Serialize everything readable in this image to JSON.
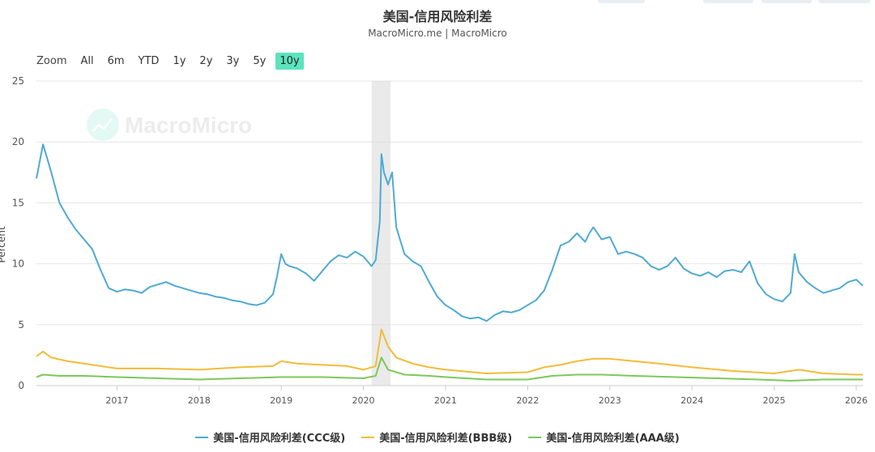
{
  "title": "美国-信用风险利差",
  "subtitle": "MacroMicro.me | MacroMicro",
  "watermark": "MacroMicro",
  "zoom": {
    "label": "Zoom",
    "buttons": [
      "All",
      "6m",
      "YTD",
      "1y",
      "2y",
      "3y",
      "5y",
      "10y"
    ],
    "active": "10y"
  },
  "chart_data": {
    "type": "line",
    "ylabel": "Percent",
    "ylim": [
      0,
      25
    ],
    "yticks": [
      0,
      5,
      10,
      15,
      20,
      25
    ],
    "xlim": [
      2016.02,
      2026.08
    ],
    "xticks": [
      "2017",
      "2018",
      "2019",
      "2020",
      "2021",
      "2022",
      "2023",
      "2024",
      "2025",
      "2026"
    ],
    "grid": true,
    "legend_position": "bottom",
    "highlight_band": [
      2020.1,
      2020.33
    ],
    "series": [
      {
        "name": "美国-信用风险利差(CCC级)",
        "color": "#4eaad3",
        "x": [
          2016.02,
          2016.1,
          2016.2,
          2016.3,
          2016.4,
          2016.5,
          2016.6,
          2016.7,
          2016.8,
          2016.9,
          2017.0,
          2017.1,
          2017.2,
          2017.3,
          2017.4,
          2017.5,
          2017.6,
          2017.7,
          2017.8,
          2017.9,
          2018.0,
          2018.1,
          2018.2,
          2018.3,
          2018.4,
          2018.5,
          2018.6,
          2018.7,
          2018.8,
          2018.9,
          2018.95,
          2019.0,
          2019.05,
          2019.1,
          2019.2,
          2019.3,
          2019.4,
          2019.5,
          2019.6,
          2019.7,
          2019.8,
          2019.9,
          2020.0,
          2020.1,
          2020.15,
          2020.2,
          2020.22,
          2020.25,
          2020.3,
          2020.35,
          2020.4,
          2020.5,
          2020.6,
          2020.7,
          2020.8,
          2020.9,
          2021.0,
          2021.1,
          2021.2,
          2021.3,
          2021.4,
          2021.5,
          2021.6,
          2021.7,
          2021.8,
          2021.9,
          2022.0,
          2022.1,
          2022.2,
          2022.3,
          2022.4,
          2022.5,
          2022.6,
          2022.7,
          2022.75,
          2022.8,
          2022.9,
          2023.0,
          2023.1,
          2023.2,
          2023.3,
          2023.4,
          2023.5,
          2023.6,
          2023.7,
          2023.8,
          2023.9,
          2024.0,
          2024.1,
          2024.2,
          2024.3,
          2024.4,
          2024.5,
          2024.6,
          2024.7,
          2024.8,
          2024.9,
          2025.0,
          2025.1,
          2025.2,
          2025.25,
          2025.3,
          2025.4,
          2025.5,
          2025.6,
          2025.7,
          2025.8,
          2025.9,
          2026.0,
          2026.08
        ],
        "y": [
          17.0,
          19.8,
          17.5,
          15.0,
          13.8,
          12.8,
          12.0,
          11.2,
          9.5,
          8.0,
          7.7,
          7.9,
          7.8,
          7.6,
          8.1,
          8.3,
          8.5,
          8.2,
          8.0,
          7.8,
          7.6,
          7.5,
          7.3,
          7.2,
          7.0,
          6.9,
          6.7,
          6.6,
          6.8,
          7.5,
          9.0,
          10.8,
          10.0,
          9.8,
          9.6,
          9.2,
          8.6,
          9.4,
          10.2,
          10.7,
          10.5,
          11.0,
          10.6,
          9.8,
          10.3,
          13.5,
          19.0,
          17.5,
          16.5,
          17.5,
          13.0,
          10.8,
          10.2,
          9.8,
          8.5,
          7.3,
          6.6,
          6.2,
          5.7,
          5.5,
          5.6,
          5.3,
          5.8,
          6.1,
          6.0,
          6.2,
          6.6,
          7.0,
          7.8,
          9.5,
          11.5,
          11.8,
          12.5,
          11.8,
          12.5,
          13.0,
          12.0,
          12.2,
          10.8,
          11.0,
          10.8,
          10.5,
          9.8,
          9.5,
          9.8,
          10.5,
          9.6,
          9.2,
          9.0,
          9.3,
          8.9,
          9.4,
          9.5,
          9.3,
          10.2,
          8.4,
          7.5,
          7.1,
          6.9,
          7.6,
          10.8,
          9.3,
          8.5,
          8.0,
          7.6,
          7.8,
          8.0,
          8.5,
          8.7,
          8.2
        ]
      },
      {
        "name": "美国-信用风险利差(BBB级)",
        "color": "#f2bc3a",
        "x": [
          2016.02,
          2016.1,
          2016.2,
          2016.4,
          2016.6,
          2016.8,
          2017.0,
          2017.5,
          2018.0,
          2018.5,
          2018.9,
          2019.0,
          2019.2,
          2019.5,
          2019.8,
          2020.0,
          2020.15,
          2020.22,
          2020.3,
          2020.4,
          2020.6,
          2020.8,
          2021.0,
          2021.5,
          2022.0,
          2022.2,
          2022.4,
          2022.6,
          2022.8,
          2023.0,
          2023.3,
          2023.6,
          2024.0,
          2024.5,
          2025.0,
          2025.3,
          2025.6,
          2026.0,
          2026.08
        ],
        "y": [
          2.4,
          2.8,
          2.3,
          2.0,
          1.8,
          1.6,
          1.4,
          1.4,
          1.3,
          1.5,
          1.6,
          2.0,
          1.8,
          1.7,
          1.6,
          1.3,
          1.6,
          4.6,
          3.2,
          2.3,
          1.8,
          1.5,
          1.3,
          1.0,
          1.1,
          1.5,
          1.7,
          2.0,
          2.2,
          2.2,
          2.0,
          1.8,
          1.5,
          1.2,
          1.0,
          1.3,
          1.0,
          0.9,
          0.9
        ]
      },
      {
        "name": "美国-信用风险利差(AAA级)",
        "color": "#7ec75a",
        "x": [
          2016.02,
          2016.1,
          2016.3,
          2016.6,
          2017.0,
          2017.5,
          2018.0,
          2018.5,
          2019.0,
          2019.5,
          2020.0,
          2020.15,
          2020.22,
          2020.3,
          2020.5,
          2020.8,
          2021.0,
          2021.5,
          2022.0,
          2022.3,
          2022.6,
          2022.9,
          2023.3,
          2023.8,
          2024.3,
          2024.8,
          2025.2,
          2025.6,
          2026.08
        ],
        "y": [
          0.7,
          0.9,
          0.8,
          0.8,
          0.7,
          0.6,
          0.5,
          0.6,
          0.7,
          0.7,
          0.6,
          0.8,
          2.3,
          1.3,
          0.9,
          0.8,
          0.7,
          0.5,
          0.5,
          0.8,
          0.9,
          0.9,
          0.8,
          0.7,
          0.6,
          0.5,
          0.4,
          0.5,
          0.5
        ]
      }
    ]
  }
}
